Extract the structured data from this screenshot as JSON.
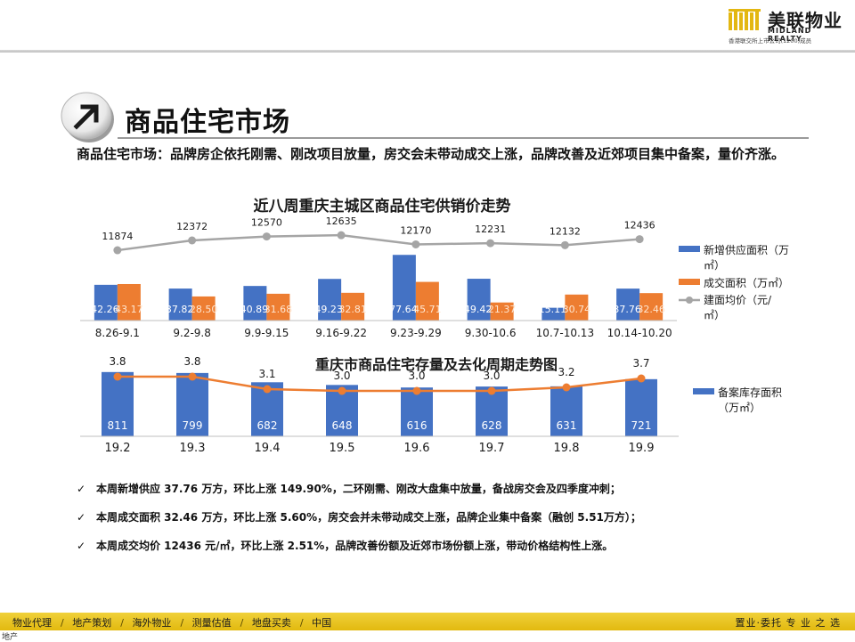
{
  "header": {
    "logo_cn": "美联物业",
    "logo_en": "MIDLAND REALTY",
    "logo_sub": "香港联交所上市公司(1200)成员"
  },
  "page": {
    "title": "商品住宅市场",
    "intro": "商品住宅市场：品牌房企依托刚需、刚改项目放量，房交会未带动成交上涨，品牌改善及近郊项目集中备案，量价齐涨。"
  },
  "icons": {
    "title_badge": "arrow-up-right-icon",
    "bullet": "check-icon"
  },
  "colors": {
    "blue": "#4472c4",
    "orange": "#ed7d31",
    "gray_line": "#a5a5a5",
    "footer": "#e8c21f"
  },
  "chart_data": [
    {
      "type": "bar+line",
      "title": "近八周重庆主城区商品住宅供销价走势",
      "categories": [
        "8.26-9.1",
        "9.2-9.8",
        "9.9-9.15",
        "9.16-9.22",
        "9.23-9.29",
        "9.30-10.6",
        "10.7-10.13",
        "10.14-10.20"
      ],
      "series": [
        {
          "name": "新增供应面积（万㎡）",
          "kind": "bar",
          "color": "#4472c4",
          "values": [
            42.26,
            37.82,
            40.89,
            49.23,
            77.64,
            49.42,
            15.11,
            37.76
          ],
          "labels": [
            "42.26",
            "37.82",
            "40.89",
            "49.23",
            "77.64",
            "49.42",
            "15.11",
            "37.76"
          ]
        },
        {
          "name": "成交面积（万㎡）",
          "kind": "bar",
          "color": "#ed7d31",
          "values": [
            43.17,
            28.5,
            31.68,
            32.81,
            45.71,
            21.37,
            30.74,
            32.46
          ],
          "labels": [
            "43.17",
            "28.50",
            "31.68",
            "32.81",
            "45.71",
            "21.37",
            "30.74",
            "32.46"
          ]
        },
        {
          "name": "建面均价（元/㎡）",
          "kind": "line",
          "color": "#a5a5a5",
          "values": [
            11874,
            12372,
            12570,
            12635,
            12170,
            12231,
            12132,
            12436
          ],
          "labels": [
            "11874",
            "12372",
            "12570",
            "12635",
            "12170",
            "12231",
            "12132",
            "12436"
          ]
        }
      ],
      "legend": [
        "新增供应面积（万",
        "㎡）",
        "成交面积（万㎡）",
        "建面均价（元/",
        "㎡）"
      ],
      "legend_position": "right"
    },
    {
      "type": "bar+line",
      "title": "重庆市商品住宅存量及去化周期走势图",
      "categories": [
        "19.2",
        "19.3",
        "19.4",
        "19.5",
        "19.6",
        "19.7",
        "19.8",
        "19.9"
      ],
      "series": [
        {
          "name": "备案库存面积（万㎡）",
          "kind": "bar",
          "color": "#4472c4",
          "values": [
            811,
            799,
            682,
            648,
            616,
            628,
            631,
            721
          ],
          "labels": [
            "811",
            "799",
            "682",
            "648",
            "616",
            "628",
            "631",
            "721"
          ]
        },
        {
          "name": "",
          "kind": "line",
          "color": "#ed7d31",
          "values": [
            3.8,
            3.8,
            3.1,
            3.0,
            3.0,
            3.0,
            3.2,
            3.7
          ],
          "labels": [
            "3.8",
            "3.8",
            "3.1",
            "3.0",
            "3.0",
            "3.0",
            "3.2",
            "3.7"
          ]
        }
      ],
      "legend": [
        "备案库存面积",
        "（万㎡）"
      ],
      "legend_position": "right"
    }
  ],
  "bullets": [
    "本周新增供应 37.76 万方，环比上涨 149.90%，二环刚需、刚改大盘集中放量，备战房交会及四季度冲刺；",
    "本周成交面积 32.46 万方，环比上涨 5.60%，房交会并未带动成交上涨，品牌企业集中备案（融创 5.51万方）；",
    "本周成交均价 12436 元/㎡，环比上涨 2.51%，品牌改善份额及近郊市场份额上涨，带动价格结构性上涨。"
  ],
  "footer": {
    "items": [
      "物业代理",
      "地产策划",
      "海外物业",
      "测量估值",
      "地盘买卖",
      "中国"
    ],
    "right": "置业·委托 专 业 之 选",
    "corner": "地产"
  }
}
